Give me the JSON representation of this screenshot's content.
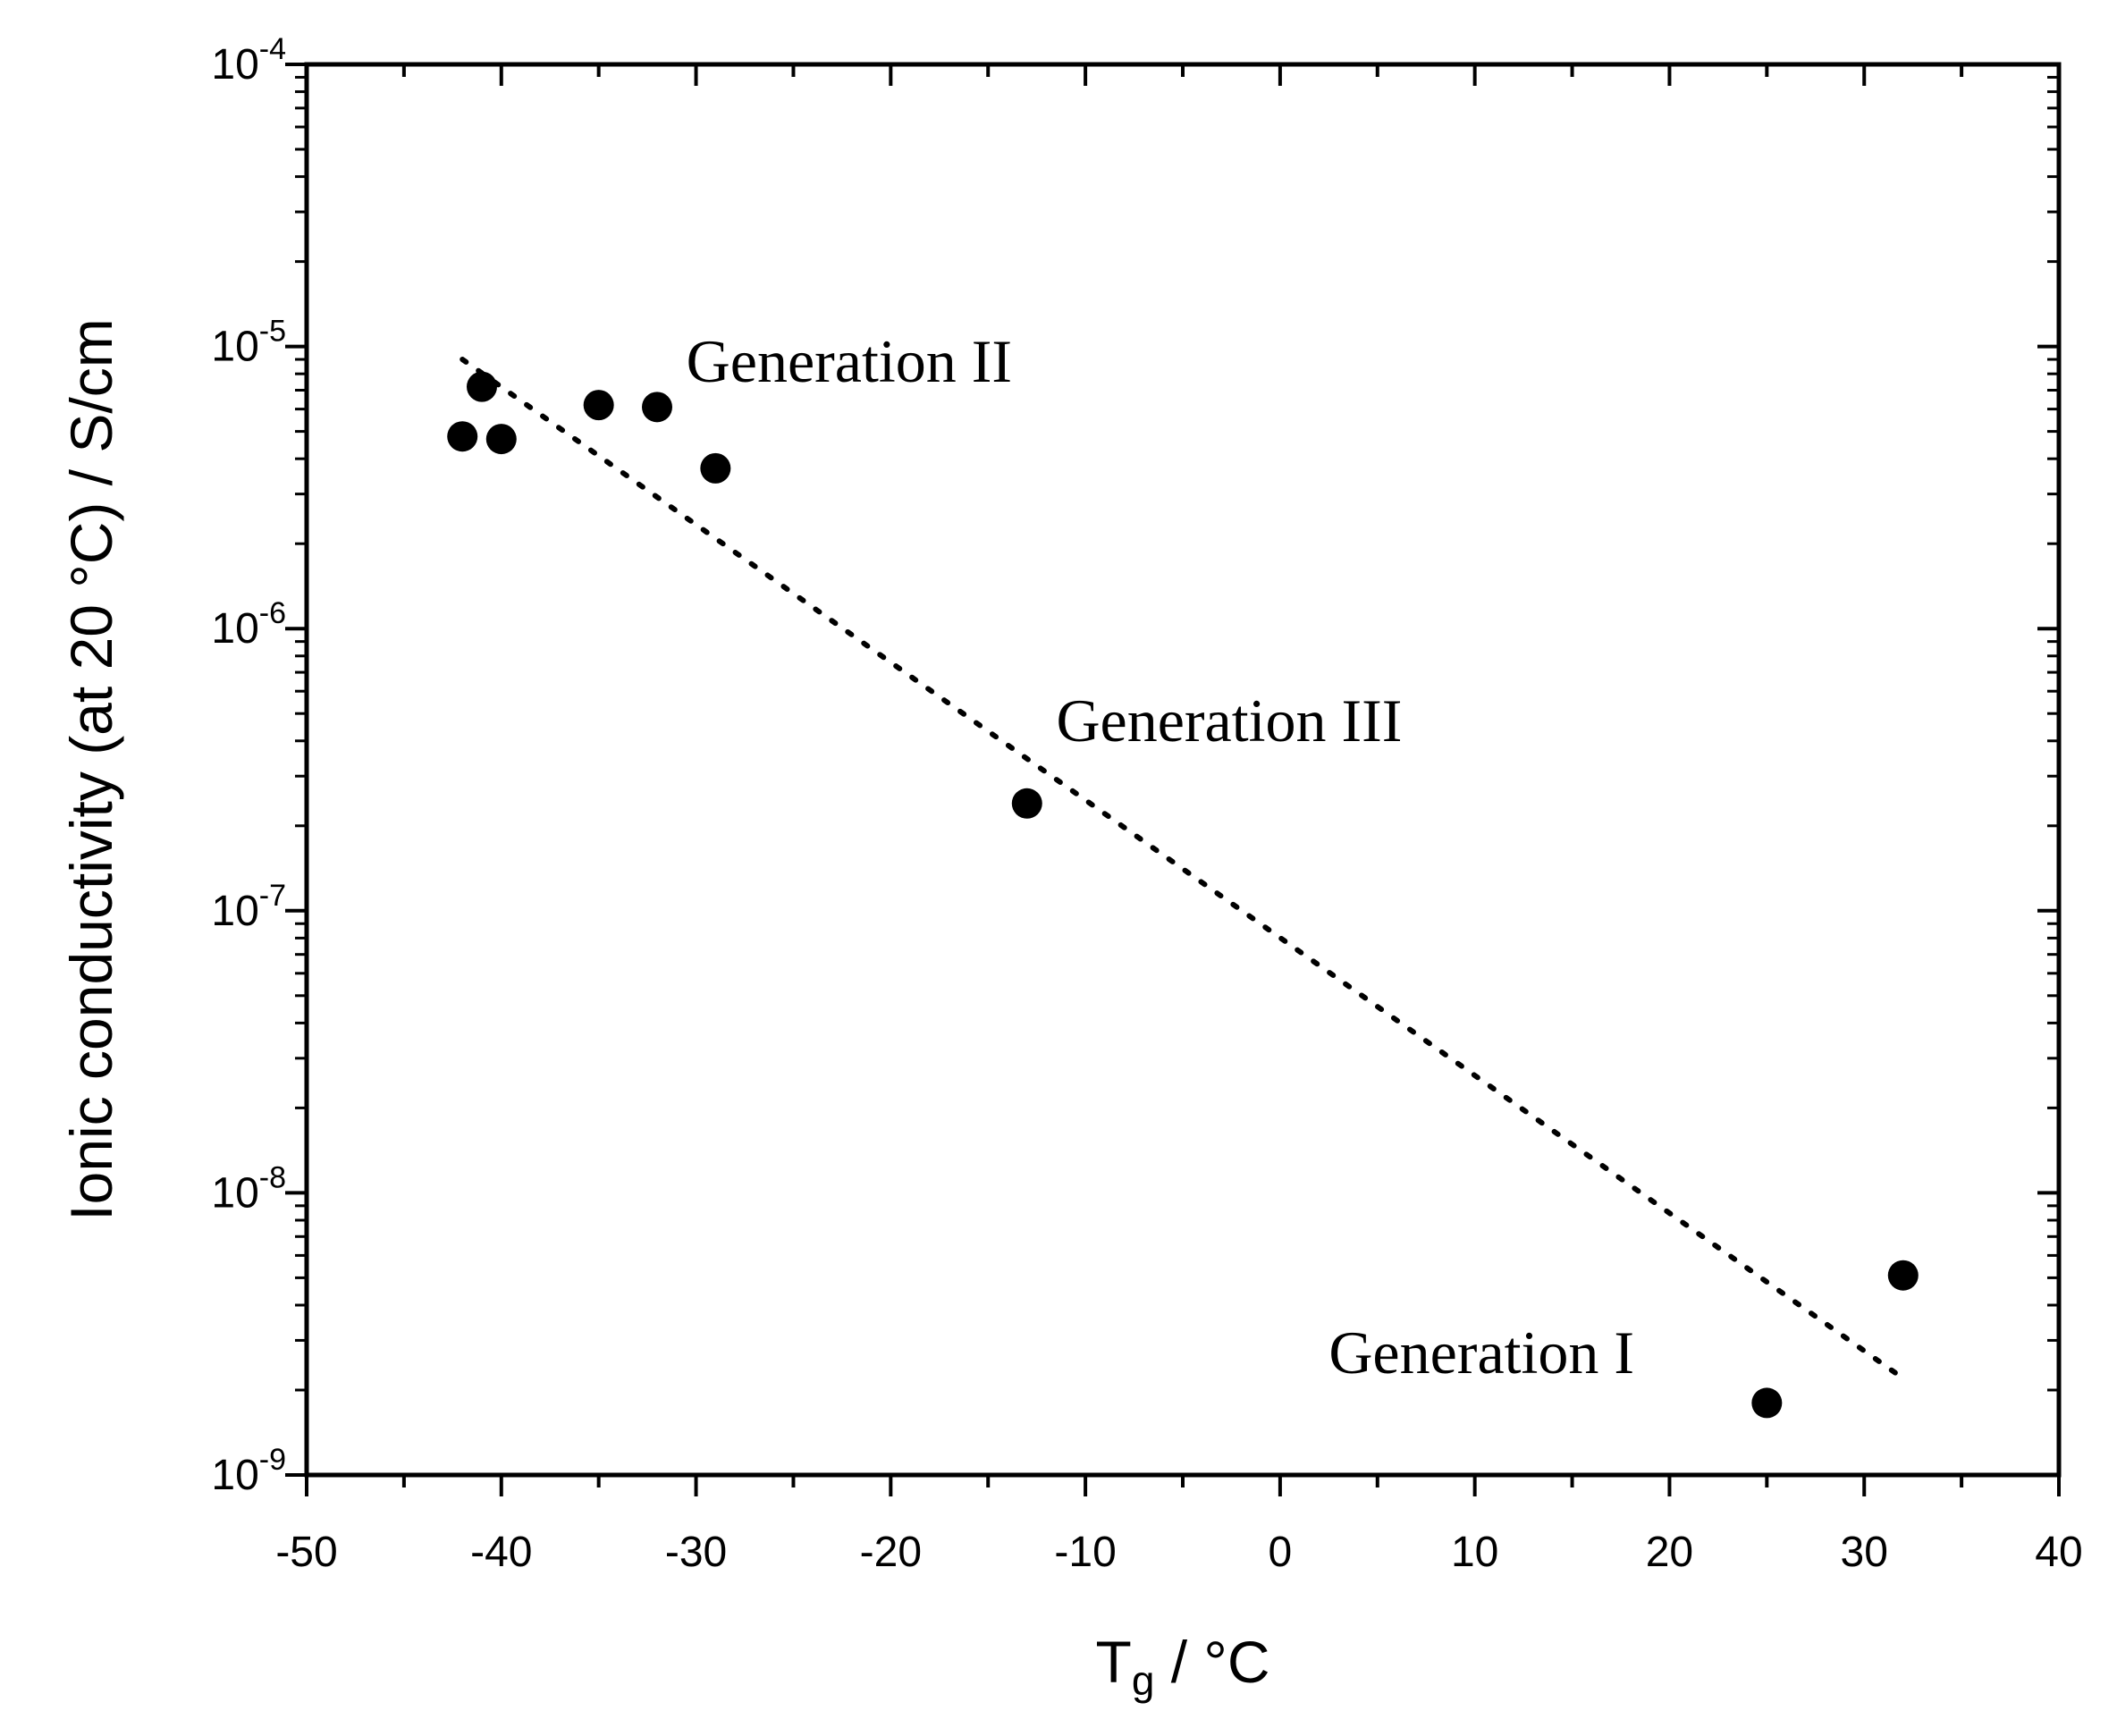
{
  "chart_data": {
    "type": "scatter",
    "title": "",
    "xlabel_main": "T",
    "xlabel_sub": "g",
    "xlabel_rest": " / °C",
    "ylabel": "Ionic conductivity (at 20 °C) / S/cm",
    "xlim": [
      -50,
      40
    ],
    "ylim_exp": [
      -9,
      -4
    ],
    "yscale": "log",
    "x_ticks": [
      -50,
      -40,
      -30,
      -20,
      -10,
      0,
      10,
      20,
      30,
      40
    ],
    "x_tick_labels": [
      "-50",
      "-40",
      "-30",
      "-20",
      "-10",
      "0",
      "10",
      "20",
      "30",
      "40"
    ],
    "y_tick_exponents": [
      -9,
      -8,
      -7,
      -6,
      -5,
      -4
    ],
    "y_tick_base": "10",
    "y_tick_exp_labels": [
      "-9",
      "-8",
      "-7",
      "-6",
      "-5",
      "-4"
    ],
    "series": [
      {
        "name": "data",
        "marker": "filled-circle",
        "color": "#000000",
        "points": [
          {
            "x": -42,
            "y": 4.8e-06
          },
          {
            "x": -41,
            "y": 7.2e-06
          },
          {
            "x": -40,
            "y": 4.7e-06
          },
          {
            "x": -35,
            "y": 6.2e-06
          },
          {
            "x": -32,
            "y": 6.1e-06
          },
          {
            "x": -29,
            "y": 3.7e-06
          },
          {
            "x": -13,
            "y": 2.4e-07
          },
          {
            "x": 25,
            "y": 1.8e-09
          },
          {
            "x": 32,
            "y": 5.1e-09
          }
        ]
      },
      {
        "name": "fit",
        "style": "dotted",
        "color": "#000000",
        "points": [
          {
            "x": -42,
            "y": 9e-06
          },
          {
            "x": 32,
            "y": 2.2e-09
          }
        ]
      }
    ],
    "annotations": [
      {
        "text": "Generation II",
        "x": -30.5,
        "y": 7.5e-06
      },
      {
        "text": "Generation III",
        "x": -11.5,
        "y": 4e-07
      },
      {
        "text": "Generation I",
        "x": 2.5,
        "y": 2.3e-09
      }
    ]
  }
}
